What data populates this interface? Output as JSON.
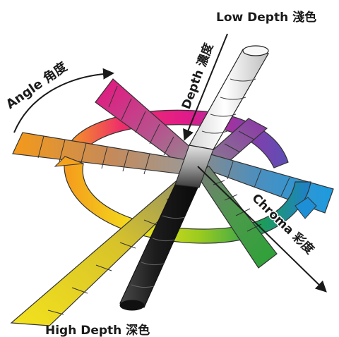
{
  "labels": {
    "angle": "Angle 角度",
    "depth": "Depth 濃度",
    "low_depth": "Low Depth 淺色",
    "high_depth": "High Depth 深色",
    "chroma": "Chroma 彩度"
  },
  "hues": [
    "#e6147f",
    "#f2384a",
    "#f4a11d",
    "#f3e21d",
    "#a6cf1c",
    "#2f9e3a",
    "#1f9ad8",
    "#7a3aa8"
  ],
  "colors": {
    "arrow": "#1a1a1a",
    "cylinder_light": "#f2f2f2",
    "cylinder_dark": "#151515"
  }
}
